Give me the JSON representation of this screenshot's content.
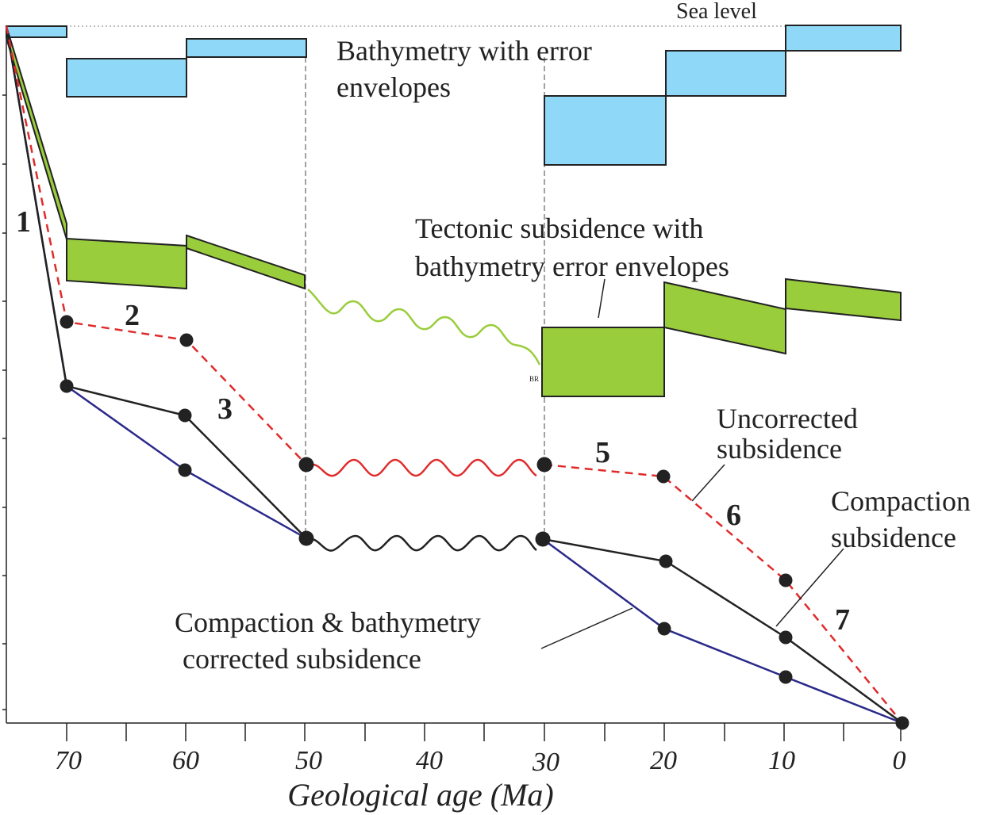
{
  "labels": {
    "sea_level": "Sea level",
    "bathymetry_line1": "Bathymetry with error",
    "bathymetry_line2": "envelopes",
    "tectonic_line1": "Tectonic subsidence with",
    "tectonic_line2": "bathymetry error envelopes",
    "uncorrected_line1": "Uncorrected",
    "uncorrected_line2": "subsidence",
    "compaction_line1": "Compaction",
    "compaction_line2": "subsidence",
    "corrected_line1": "Compaction & bathymetry",
    "corrected_line2": "corrected subsidence",
    "hiatus_mark": "BR",
    "x_axis_title": "Geological age (Ma)"
  },
  "segment_numbers": [
    "1",
    "2",
    "3",
    "5",
    "6",
    "7"
  ],
  "x_ticks": [
    "70",
    "60",
    "50",
    "40",
    "30",
    "20",
    "10",
    "0"
  ],
  "colors": {
    "bathymetry": "#8fd8f7",
    "tectonic": "#9acd3c",
    "uncorrected": "#e02b2b",
    "compaction": "#222222",
    "corrected": "#2a2a8a",
    "outline": "#222222"
  }
}
